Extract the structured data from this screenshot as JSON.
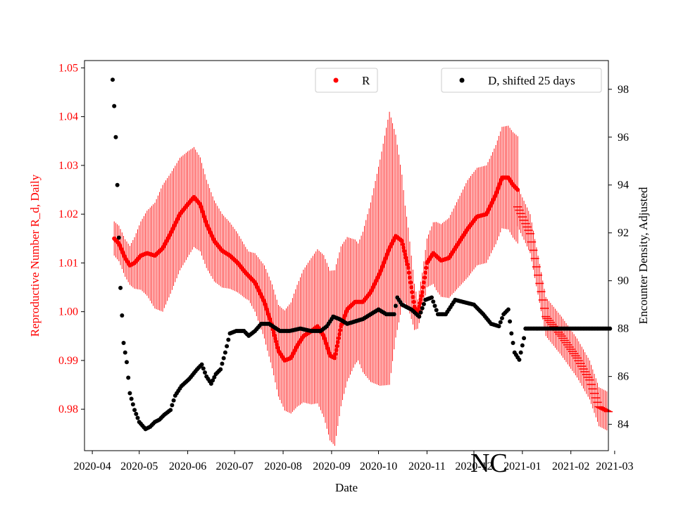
{
  "chart_data": {
    "type": "scatter",
    "annotation": "NC",
    "xlabel": "Date",
    "ylabel_left": "Reproductive Number R_d, Daily",
    "ylabel_right": "Encounter Density, Adjusted",
    "xlim_days": [
      -5,
      330
    ],
    "ylim_left": [
      0.9715,
      1.0515
    ],
    "ylim_right": [
      82.9,
      99.2
    ],
    "x_ticks": [
      {
        "label": "2020-04",
        "day": 0
      },
      {
        "label": "2020-05",
        "day": 30
      },
      {
        "label": "2020-06",
        "day": 61
      },
      {
        "label": "2020-07",
        "day": 91
      },
      {
        "label": "2020-08",
        "day": 122
      },
      {
        "label": "2020-09",
        "day": 153
      },
      {
        "label": "2020-10",
        "day": 183
      },
      {
        "label": "2020-11",
        "day": 214
      },
      {
        "label": "2020-12",
        "day": 244
      },
      {
        "label": "2021-01",
        "day": 275
      },
      {
        "label": "2021-02",
        "day": 306
      },
      {
        "label": "2021-03",
        "day": 334
      }
    ],
    "y_ticks_left": [
      "0.98",
      "0.99",
      "1.00",
      "1.01",
      "1.02",
      "1.03",
      "1.04",
      "1.05"
    ],
    "y_ticks_right": [
      "84",
      "86",
      "88",
      "90",
      "92",
      "94",
      "96",
      "98"
    ],
    "legend_R": {
      "label": "R",
      "position": "top-center"
    },
    "legend_D": {
      "label": "D, shifted 25 days",
      "position": "top-right"
    },
    "R_series": {
      "name": "R",
      "color": "#ff0000",
      "observed_knots": [
        [
          14,
          1.015
        ],
        [
          17,
          1.014
        ],
        [
          21,
          1.011
        ],
        [
          24,
          1.0095
        ],
        [
          27,
          1.01
        ],
        [
          31,
          1.0115
        ],
        [
          35,
          1.012
        ],
        [
          40,
          1.0115
        ],
        [
          45,
          1.013
        ],
        [
          50,
          1.016
        ],
        [
          56,
          1.02
        ],
        [
          61,
          1.022
        ],
        [
          65,
          1.0235
        ],
        [
          69,
          1.022
        ],
        [
          73,
          1.018
        ],
        [
          78,
          1.0145
        ],
        [
          83,
          1.0125
        ],
        [
          88,
          1.0115
        ],
        [
          93,
          1.01
        ],
        [
          98,
          1.008
        ],
        [
          104,
          1.006
        ],
        [
          110,
          1.002
        ],
        [
          115,
          0.997
        ],
        [
          119,
          0.992
        ],
        [
          123,
          0.99
        ],
        [
          127,
          0.9905
        ],
        [
          131,
          0.993
        ],
        [
          135,
          0.995
        ],
        [
          140,
          0.996
        ],
        [
          144,
          0.997
        ],
        [
          148,
          0.995
        ],
        [
          152,
          0.991
        ],
        [
          155,
          0.9905
        ],
        [
          159,
          0.997
        ],
        [
          163,
          1.0005
        ],
        [
          168,
          1.002
        ],
        [
          173,
          1.002
        ],
        [
          178,
          1.004
        ],
        [
          184,
          1.008
        ],
        [
          190,
          1.013
        ],
        [
          194,
          1.0155
        ],
        [
          198,
          1.0145
        ],
        [
          202,
          1.009
        ],
        [
          206,
          1.001
        ],
        [
          208,
          0.9995
        ],
        [
          211,
          1.004
        ],
        [
          214,
          1.01
        ],
        [
          218,
          1.012
        ],
        [
          223,
          1.0105
        ],
        [
          228,
          1.011
        ],
        [
          234,
          1.014
        ],
        [
          240,
          1.017
        ],
        [
          246,
          1.0195
        ],
        [
          252,
          1.02
        ],
        [
          258,
          1.024
        ],
        [
          262,
          1.0275
        ],
        [
          266,
          1.0275
        ],
        [
          269,
          1.026
        ],
        [
          272,
          1.025
        ]
      ],
      "band_knots": [
        [
          14,
          0.0035
        ],
        [
          24,
          0.004
        ],
        [
          45,
          0.013
        ],
        [
          60,
          0.011
        ],
        [
          100,
          0.005
        ],
        [
          112,
          0.008
        ],
        [
          122,
          0.01
        ],
        [
          140,
          0.015
        ],
        [
          155,
          0.018
        ],
        [
          170,
          0.012
        ],
        [
          190,
          0.028
        ],
        [
          200,
          0.01
        ],
        [
          208,
          0.003
        ],
        [
          220,
          0.007
        ],
        [
          240,
          0.01
        ],
        [
          255,
          0.01
        ],
        [
          272,
          0.011
        ]
      ],
      "forecast_knots": [
        [
          272,
          1.0215
        ],
        [
          280,
          1.016
        ],
        [
          290,
          0.999
        ],
        [
          300,
          0.995
        ],
        [
          310,
          0.9905
        ],
        [
          318,
          0.986
        ],
        [
          324,
          0.9805
        ],
        [
          330,
          0.9795
        ]
      ],
      "forecast_band": 0.004
    },
    "D_series": {
      "name": "D, shifted 25 days",
      "color": "#000000",
      "knots": [
        [
          13,
          98.4
        ],
        [
          14,
          97.3
        ],
        [
          15,
          96.0
        ],
        [
          16,
          94.0
        ],
        [
          17,
          91.8
        ],
        [
          18,
          89.7
        ],
        [
          20,
          87.4
        ],
        [
          22,
          86.6
        ],
        [
          24,
          85.3
        ],
        [
          27,
          84.6
        ],
        [
          30,
          84.1
        ],
        [
          34,
          83.8
        ],
        [
          37,
          83.9
        ],
        [
          40,
          84.1
        ],
        [
          43,
          84.2
        ],
        [
          46,
          84.4
        ],
        [
          50,
          84.6
        ],
        [
          53,
          85.2
        ],
        [
          57,
          85.6
        ],
        [
          62,
          85.9
        ],
        [
          67,
          86.3
        ],
        [
          70,
          86.5
        ],
        [
          73,
          86.0
        ],
        [
          76,
          85.7
        ],
        [
          79,
          86.1
        ],
        [
          82,
          86.3
        ],
        [
          85,
          87.0
        ],
        [
          88,
          87.8
        ],
        [
          92,
          87.9
        ],
        [
          97,
          87.9
        ],
        [
          100,
          87.7
        ],
        [
          104,
          87.9
        ],
        [
          108,
          88.2
        ],
        [
          113,
          88.2
        ],
        [
          120,
          87.9
        ],
        [
          126,
          87.9
        ],
        [
          133,
          88.0
        ],
        [
          140,
          87.9
        ],
        [
          146,
          87.9
        ],
        [
          150,
          88.1
        ],
        [
          154,
          88.5
        ],
        [
          158,
          88.4
        ],
        [
          163,
          88.2
        ],
        [
          168,
          88.3
        ],
        [
          173,
          88.4
        ],
        [
          178,
          88.6
        ],
        [
          183,
          88.8
        ],
        [
          188,
          88.6
        ],
        [
          193,
          88.6
        ],
        [
          195,
          89.3
        ],
        [
          198,
          89.0
        ],
        [
          204,
          88.8
        ],
        [
          209,
          88.5
        ],
        [
          213,
          89.2
        ],
        [
          217,
          89.3
        ],
        [
          221,
          88.6
        ],
        [
          226,
          88.6
        ],
        [
          232,
          89.2
        ],
        [
          238,
          89.1
        ],
        [
          244,
          89.0
        ],
        [
          250,
          88.6
        ],
        [
          255,
          88.2
        ],
        [
          260,
          88.1
        ],
        [
          263,
          88.6
        ],
        [
          266,
          88.8
        ],
        [
          268,
          87.8
        ],
        [
          270,
          87.0
        ],
        [
          273,
          86.7
        ],
        [
          276,
          87.6
        ]
      ],
      "flat_start_day": 277,
      "flat_end_day": 331,
      "flat_value": 88.0
    }
  }
}
